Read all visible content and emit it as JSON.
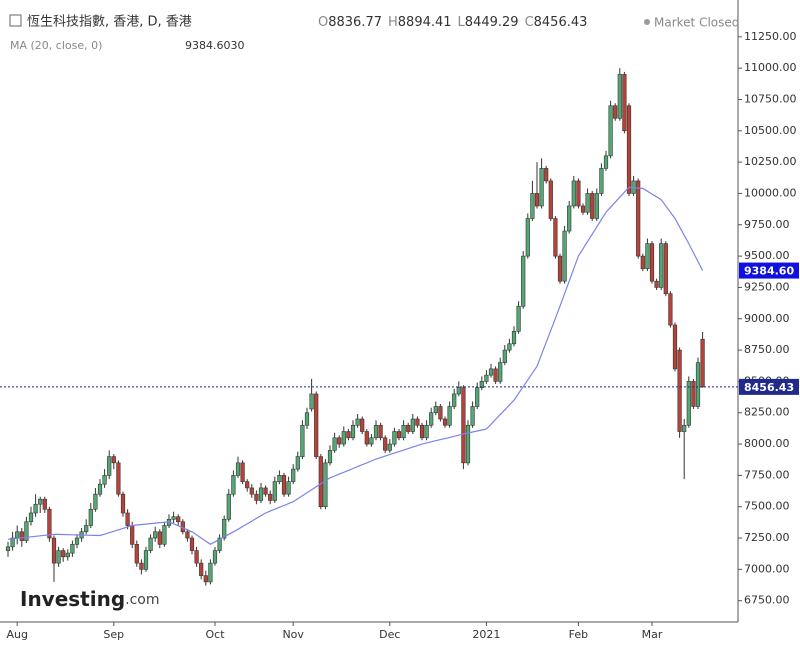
{
  "chart_data": {
    "type": "candlestick",
    "title": "恆生科技指數, 香港, D, 香港",
    "ohlc_labels": [
      "O",
      "H",
      "L",
      "C"
    ],
    "status": "Market Closed",
    "logo": {
      "name": "Investing",
      "suffix": ".com"
    },
    "up_color": "#53a874",
    "down_color": "#b7423a",
    "ylim": [
      6580,
      11480
    ],
    "yticks": [
      {
        "value": 6750,
        "label": "6750.00"
      },
      {
        "value": 7000,
        "label": "7000.00"
      },
      {
        "value": 7250,
        "label": "7250.00"
      },
      {
        "value": 7500,
        "label": "7500.00"
      },
      {
        "value": 7750,
        "label": "7750.00"
      },
      {
        "value": 8000,
        "label": "8000.00"
      },
      {
        "value": 8250,
        "label": "8250.00"
      },
      {
        "value": 8500,
        "label": "8500.00"
      },
      {
        "value": 8750,
        "label": "8750.00"
      },
      {
        "value": 9000,
        "label": "9000.00"
      },
      {
        "value": 9250,
        "label": "9250.00"
      },
      {
        "value": 9500,
        "label": "9500.00"
      },
      {
        "value": 9750,
        "label": "9750.00"
      },
      {
        "value": 10000,
        "label": "10000.00"
      },
      {
        "value": 10250,
        "label": "10250.00"
      },
      {
        "value": 10500,
        "label": "10500.00"
      },
      {
        "value": 10750,
        "label": "10750.00"
      },
      {
        "value": 11000,
        "label": "11000.00"
      },
      {
        "value": 11250,
        "label": "11250.00"
      }
    ],
    "categories": [
      null,
      null,
      "Aug",
      null,
      null,
      null,
      null,
      null,
      null,
      null,
      null,
      null,
      null,
      null,
      null,
      null,
      null,
      null,
      null,
      null,
      null,
      null,
      null,
      "Sep",
      null,
      null,
      null,
      null,
      null,
      null,
      null,
      null,
      null,
      null,
      null,
      null,
      null,
      null,
      null,
      null,
      null,
      null,
      null,
      null,
      null,
      "Oct",
      null,
      null,
      null,
      null,
      null,
      null,
      null,
      null,
      null,
      null,
      null,
      null,
      null,
      null,
      null,
      null,
      "Nov",
      null,
      null,
      null,
      null,
      null,
      null,
      null,
      null,
      null,
      null,
      null,
      null,
      null,
      null,
      null,
      null,
      null,
      null,
      null,
      null,
      "Dec",
      null,
      null,
      null,
      null,
      null,
      null,
      null,
      null,
      null,
      null,
      null,
      null,
      null,
      null,
      null,
      null,
      null,
      null,
      null,
      null,
      "2021",
      null,
      null,
      null,
      null,
      null,
      null,
      null,
      null,
      null,
      null,
      null,
      null,
      null,
      null,
      null,
      null,
      null,
      null,
      null,
      "Feb",
      null,
      null,
      null,
      null,
      null,
      null,
      null,
      null,
      null,
      null,
      null,
      null,
      null,
      null,
      null,
      "Mar",
      null,
      null,
      null,
      null,
      null,
      null,
      null,
      null,
      null,
      null,
      null
    ],
    "candles": [
      [
        7150,
        7220,
        7100,
        7180
      ],
      [
        7180,
        7300,
        7150,
        7250
      ],
      [
        7250,
        7350,
        7200,
        7300
      ],
      [
        7300,
        7330,
        7180,
        7230
      ],
      [
        7230,
        7420,
        7210,
        7380
      ],
      [
        7380,
        7500,
        7350,
        7450
      ],
      [
        7450,
        7600,
        7420,
        7520
      ],
      [
        7520,
        7580,
        7450,
        7560
      ],
      [
        7560,
        7580,
        7450,
        7480
      ],
      [
        7480,
        7500,
        7220,
        7250
      ],
      [
        7250,
        7270,
        6900,
        7050
      ],
      [
        7050,
        7180,
        7020,
        7150
      ],
      [
        7150,
        7170,
        7060,
        7100
      ],
      [
        7100,
        7160,
        7070,
        7130
      ],
      [
        7130,
        7230,
        7100,
        7200
      ],
      [
        7200,
        7280,
        7170,
        7250
      ],
      [
        7250,
        7330,
        7220,
        7300
      ],
      [
        7300,
        7400,
        7280,
        7350
      ],
      [
        7350,
        7530,
        7330,
        7480
      ],
      [
        7480,
        7650,
        7460,
        7600
      ],
      [
        7600,
        7720,
        7580,
        7680
      ],
      [
        7680,
        7800,
        7650,
        7750
      ],
      [
        7750,
        7950,
        7720,
        7900
      ],
      [
        7900,
        7920,
        7800,
        7850
      ],
      [
        7850,
        7870,
        7580,
        7600
      ],
      [
        7600,
        7620,
        7420,
        7450
      ],
      [
        7450,
        7480,
        7320,
        7350
      ],
      [
        7350,
        7380,
        7170,
        7200
      ],
      [
        7200,
        7230,
        7020,
        7050
      ],
      [
        7050,
        7080,
        6960,
        7000
      ],
      [
        7000,
        7180,
        6980,
        7150
      ],
      [
        7150,
        7280,
        7130,
        7250
      ],
      [
        7250,
        7340,
        7220,
        7300
      ],
      [
        7300,
        7320,
        7170,
        7200
      ],
      [
        7200,
        7380,
        7180,
        7350
      ],
      [
        7350,
        7440,
        7330,
        7400
      ],
      [
        7400,
        7460,
        7370,
        7420
      ],
      [
        7420,
        7440,
        7350,
        7380
      ],
      [
        7380,
        7400,
        7280,
        7300
      ],
      [
        7300,
        7320,
        7220,
        7250
      ],
      [
        7250,
        7270,
        7120,
        7150
      ],
      [
        7150,
        7180,
        7020,
        7050
      ],
      [
        7050,
        7080,
        6920,
        6950
      ],
      [
        6950,
        6990,
        6870,
        6900
      ],
      [
        6900,
        7080,
        6880,
        7050
      ],
      [
        7050,
        7180,
        7030,
        7150
      ],
      [
        7150,
        7280,
        7130,
        7250
      ],
      [
        7250,
        7430,
        7230,
        7400
      ],
      [
        7400,
        7640,
        7380,
        7600
      ],
      [
        7600,
        7790,
        7580,
        7750
      ],
      [
        7750,
        7900,
        7730,
        7850
      ],
      [
        7850,
        7870,
        7680,
        7700
      ],
      [
        7700,
        7720,
        7620,
        7650
      ],
      [
        7650,
        7680,
        7570,
        7600
      ],
      [
        7600,
        7630,
        7520,
        7550
      ],
      [
        7550,
        7690,
        7530,
        7650
      ],
      [
        7650,
        7670,
        7580,
        7600
      ],
      [
        7600,
        7630,
        7520,
        7550
      ],
      [
        7550,
        7740,
        7530,
        7700
      ],
      [
        7700,
        7790,
        7680,
        7750
      ],
      [
        7750,
        7770,
        7580,
        7600
      ],
      [
        7600,
        7740,
        7580,
        7700
      ],
      [
        7700,
        7840,
        7680,
        7800
      ],
      [
        7800,
        7940,
        7780,
        7900
      ],
      [
        7900,
        8190,
        7880,
        8150
      ],
      [
        8150,
        8290,
        8120,
        8250
      ],
      [
        8280,
        8520,
        8260,
        8400
      ],
      [
        8400,
        8420,
        7880,
        7900
      ],
      [
        7900,
        7920,
        7480,
        7500
      ],
      [
        7500,
        7880,
        7480,
        7850
      ],
      [
        7850,
        7990,
        7830,
        7950
      ],
      [
        7950,
        8090,
        7930,
        8050
      ],
      [
        8050,
        8070,
        7970,
        8000
      ],
      [
        8000,
        8140,
        7980,
        8100
      ],
      [
        8100,
        8120,
        8030,
        8050
      ],
      [
        8050,
        8190,
        8030,
        8150
      ],
      [
        8150,
        8240,
        8130,
        8200
      ],
      [
        8200,
        8220,
        8080,
        8100
      ],
      [
        8100,
        8120,
        7980,
        8000
      ],
      [
        8000,
        8080,
        7980,
        8050
      ],
      [
        8050,
        8190,
        8030,
        8150
      ],
      [
        8150,
        8170,
        8030,
        8050
      ],
      [
        8050,
        8070,
        7930,
        7950
      ],
      [
        7950,
        8040,
        7930,
        8000
      ],
      [
        8000,
        8130,
        7980,
        8100
      ],
      [
        8100,
        8120,
        8030,
        8050
      ],
      [
        8050,
        8190,
        8030,
        8150
      ],
      [
        8150,
        8170,
        8080,
        8100
      ],
      [
        8100,
        8240,
        8080,
        8200
      ],
      [
        8200,
        8220,
        8130,
        8150
      ],
      [
        8150,
        8170,
        8030,
        8050
      ],
      [
        8050,
        8190,
        8030,
        8150
      ],
      [
        8150,
        8290,
        8130,
        8250
      ],
      [
        8250,
        8340,
        8230,
        8300
      ],
      [
        8300,
        8320,
        8180,
        8200
      ],
      [
        8200,
        8220,
        8130,
        8150
      ],
      [
        8150,
        8340,
        8130,
        8300
      ],
      [
        8300,
        8440,
        8280,
        8400
      ],
      [
        8400,
        8500,
        8380,
        8450
      ],
      [
        8450,
        8470,
        7800,
        7850
      ],
      [
        7850,
        8190,
        7830,
        8150
      ],
      [
        8150,
        8340,
        8130,
        8300
      ],
      [
        8300,
        8490,
        8280,
        8450
      ],
      [
        8450,
        8540,
        8430,
        8500
      ],
      [
        8500,
        8590,
        8480,
        8550
      ],
      [
        8550,
        8640,
        8530,
        8600
      ],
      [
        8600,
        8620,
        8480,
        8500
      ],
      [
        8500,
        8690,
        8480,
        8650
      ],
      [
        8650,
        8790,
        8630,
        8750
      ],
      [
        8750,
        8840,
        8730,
        8800
      ],
      [
        8800,
        8940,
        8780,
        8900
      ],
      [
        8900,
        9140,
        8880,
        9100
      ],
      [
        9100,
        9540,
        9080,
        9500
      ],
      [
        9500,
        9840,
        9480,
        9800
      ],
      [
        9800,
        10100,
        9780,
        10000
      ],
      [
        10000,
        10250,
        9880,
        9900
      ],
      [
        9900,
        10280,
        9880,
        10200
      ],
      [
        10200,
        10220,
        10080,
        10100
      ],
      [
        10100,
        10120,
        9780,
        9800
      ],
      [
        9800,
        9820,
        9480,
        9500
      ],
      [
        9500,
        9520,
        9280,
        9300
      ],
      [
        9300,
        9740,
        9280,
        9700
      ],
      [
        9700,
        9940,
        9680,
        9900
      ],
      [
        9900,
        10140,
        9880,
        10100
      ],
      [
        10100,
        10120,
        9880,
        9900
      ],
      [
        9900,
        9920,
        9830,
        9850
      ],
      [
        9850,
        10040,
        9830,
        10000
      ],
      [
        10000,
        10020,
        9780,
        9800
      ],
      [
        9800,
        10040,
        9780,
        10000
      ],
      [
        10000,
        10240,
        9980,
        10200
      ],
      [
        10200,
        10340,
        10180,
        10300
      ],
      [
        10300,
        10740,
        10280,
        10700
      ],
      [
        10700,
        10720,
        10580,
        10600
      ],
      [
        10600,
        11000,
        10580,
        10950
      ],
      [
        10950,
        10970,
        10480,
        10500
      ],
      [
        10700,
        10720,
        9980,
        10000
      ],
      [
        10000,
        10140,
        9980,
        10100
      ],
      [
        10100,
        10120,
        9480,
        9500
      ],
      [
        9500,
        9520,
        9380,
        9400
      ],
      [
        9400,
        9640,
        9380,
        9600
      ],
      [
        9600,
        9620,
        9280,
        9300
      ],
      [
        9300,
        9320,
        9230,
        9250
      ],
      [
        9250,
        9640,
        9230,
        9600
      ],
      [
        9600,
        9620,
        9180,
        9200
      ],
      [
        9200,
        9220,
        8930,
        8950
      ],
      [
        8950,
        8970,
        8580,
        8600
      ],
      [
        8750,
        8770,
        8050,
        8100
      ],
      [
        8100,
        8200,
        7720,
        8150
      ],
      [
        8150,
        8540,
        8130,
        8500
      ],
      [
        8500,
        8520,
        8280,
        8300
      ],
      [
        8300,
        8690,
        8280,
        8650
      ],
      [
        8836.77,
        8894.41,
        8449.29,
        8456.43
      ]
    ],
    "ma": {
      "name": "MA (20, close, 0)",
      "color": "#7b83ea",
      "legend_value": {
        "value": 9384.603,
        "label": "9384.6030"
      },
      "values": [
        7240,
        7244,
        7248,
        7252,
        7256,
        7260,
        7264,
        7268,
        7272,
        7276,
        7280,
        7279,
        7278,
        7277,
        7276,
        7275,
        7274,
        7273,
        7272,
        7271,
        7270,
        7281,
        7293,
        7304,
        7316,
        7327,
        7339,
        7350,
        7354,
        7358,
        7361,
        7365,
        7369,
        7373,
        7376,
        7380,
        7364,
        7348,
        7332,
        7316,
        7300,
        7275,
        7250,
        7225,
        7200,
        7220,
        7240,
        7260,
        7280,
        7300,
        7320,
        7342,
        7363,
        7385,
        7407,
        7428,
        7450,
        7465,
        7480,
        7495,
        7510,
        7525,
        7540,
        7564,
        7588,
        7611,
        7635,
        7659,
        7683,
        7706,
        7730,
        7745,
        7760,
        7775,
        7790,
        7805,
        7820,
        7835,
        7850,
        7865,
        7880,
        7892,
        7904,
        7916,
        7928,
        7940,
        7952,
        7964,
        7976,
        7988,
        8000,
        8009,
        8018,
        8027,
        8036,
        8044,
        8053,
        8062,
        8071,
        8080,
        8088,
        8096,
        8104,
        8112,
        8120,
        8158,
        8197,
        8235,
        8273,
        8312,
        8350,
        8404,
        8458,
        8512,
        8566,
        8620,
        8716,
        8812,
        8908,
        9004,
        9100,
        9200,
        9300,
        9400,
        9500,
        9558,
        9617,
        9675,
        9733,
        9792,
        9850,
        9890,
        9930,
        9970,
        10010,
        10050,
        10047,
        10043,
        10040,
        10018,
        9995,
        9973,
        9950,
        9900,
        9850,
        9800,
        9733,
        9667,
        9600,
        9528,
        9456,
        9384.603
      ]
    },
    "price_tags": [
      {
        "value": 9384.603,
        "label": "9384.60",
        "color": "#1010e0"
      },
      {
        "value": 8456.43,
        "label": "8456.43",
        "color": "#1f2a8a"
      }
    ]
  }
}
